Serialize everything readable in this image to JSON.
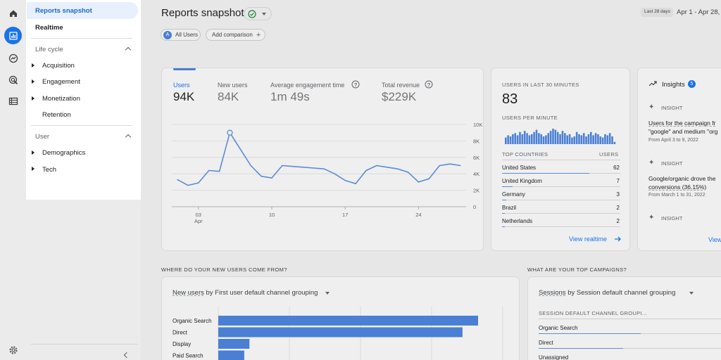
{
  "sidebar": {
    "reports_snapshot": "Reports snapshot",
    "realtime": "Realtime",
    "lifecycle_header": "Life cycle",
    "lifecycle_items": [
      "Acquisition",
      "Engagement",
      "Monetization",
      "Retention"
    ],
    "user_header": "User",
    "user_items": [
      "Demographics",
      "Tech"
    ]
  },
  "header": {
    "title": "Reports snapshot",
    "date_label": "Last 28 days",
    "date_range": "Apr 1 - Apr 28,",
    "segment_letter": "A",
    "segment": "All Users",
    "add_comparison": "Add comparison"
  },
  "metrics": [
    {
      "label": "Users",
      "value": "94K"
    },
    {
      "label": "New users",
      "value": "84K"
    },
    {
      "label": "Average engagement time",
      "value": "1m 49s"
    },
    {
      "label": "Total revenue",
      "value": "$229K"
    }
  ],
  "chart_data": {
    "type": "line",
    "x_ticks": [
      {
        "day": 3,
        "label": "03",
        "sub": "Apr"
      },
      {
        "day": 10,
        "label": "10"
      },
      {
        "day": 17,
        "label": "17"
      },
      {
        "day": 24,
        "label": "24"
      }
    ],
    "y_ticks": [
      "10K",
      "8K",
      "6K",
      "4K",
      "2K",
      "0"
    ],
    "ylim": [
      0,
      10000
    ],
    "x": [
      1,
      2,
      3,
      4,
      5,
      6,
      7,
      8,
      9,
      10,
      11,
      12,
      13,
      14,
      15,
      16,
      17,
      18,
      19,
      20,
      21,
      22,
      23,
      24,
      25,
      26,
      27,
      28
    ],
    "values": [
      3300,
      2600,
      2900,
      4400,
      4300,
      9000,
      7000,
      5000,
      3700,
      3500,
      5000,
      4900,
      4800,
      4700,
      4600,
      4000,
      3200,
      2800,
      4400,
      5000,
      4800,
      4600,
      4200,
      3000,
      3400,
      5000,
      5200,
      5000
    ],
    "highlight_index": 5
  },
  "realtime": {
    "title": "USERS IN LAST 30 MINUTES",
    "value": "83",
    "per_minute": "USERS PER MINUTE",
    "per_minute_values": [
      6,
      8,
      7,
      9,
      10,
      8,
      11,
      9,
      12,
      10,
      8,
      9,
      11,
      13,
      10,
      9,
      7,
      8,
      10,
      12,
      14,
      13,
      11,
      9,
      12,
      10,
      8,
      9,
      6,
      7,
      11,
      9,
      8,
      10,
      7,
      9,
      11,
      8,
      10,
      9,
      7,
      6,
      9,
      8,
      10,
      7,
      2
    ],
    "countries_header": "TOP COUNTRIES",
    "users_header": "USERS",
    "countries": [
      {
        "name": "United States",
        "value": "62",
        "share": 1.0
      },
      {
        "name": "United Kingdom",
        "value": "7",
        "share": 0.12
      },
      {
        "name": "Germany",
        "value": "3",
        "share": 0.05
      },
      {
        "name": "Brazil",
        "value": "2",
        "share": 0.03
      },
      {
        "name": "Netherlands",
        "value": "2",
        "share": 0.03
      }
    ],
    "link": "View realtime"
  },
  "insights": {
    "title": "Insights",
    "count": "5",
    "label": "INSIGHT",
    "items": [
      {
        "line1": "Users for the campaign fr",
        "line2": "\"google\" and medium \"org",
        "date": "From April 3 to 9, 2022"
      },
      {
        "line1": "Google/organic drove the",
        "line2": "conversions (36.15%)",
        "date": "From March 1 to 31, 2022"
      }
    ],
    "link": "View"
  },
  "new_users": {
    "section_title": "WHERE DO YOUR NEW USERS COME FROM?",
    "dropdown_metric": "New users",
    "dropdown_rest": " by First user default channel grouping",
    "bars": [
      {
        "label": "Organic Search",
        "share": 1.0
      },
      {
        "label": "Direct",
        "share": 0.94
      },
      {
        "label": "Display",
        "share": 0.12
      },
      {
        "label": "Paid Search",
        "share": 0.1
      }
    ]
  },
  "campaigns": {
    "section_title": "WHAT ARE YOUR TOP CAMPAIGNS?",
    "dropdown_metric": "Sessions",
    "dropdown_rest": " by Session default channel grouping",
    "col_header": "SESSION DEFAULT CHANNEL GROUPI...",
    "rows": [
      {
        "label": "Organic Search",
        "share": 0.58
      },
      {
        "label": "Direct",
        "share": 0.48
      },
      {
        "label": "Unassigned",
        "share": 0.0
      }
    ]
  },
  "colors": {
    "accent": "#1a73e8",
    "chart_line": "#5b8bd6",
    "bar": "#4a7fd4",
    "success": "#188038"
  }
}
